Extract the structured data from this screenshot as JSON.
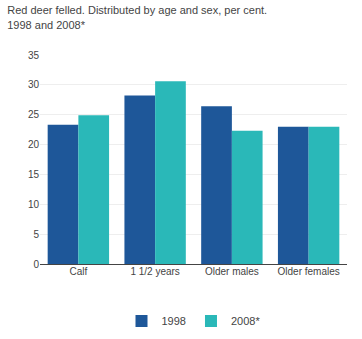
{
  "chart_data": {
    "type": "bar",
    "title": "Red deer felled. Distributed by age and sex, per cent.",
    "subtitle": "1998 and 2008*",
    "categories": [
      "Calf",
      "1 1/2 years",
      "Older males",
      "Older females"
    ],
    "series": [
      {
        "name": "1998",
        "color": "#1e5799",
        "values": [
          23.3,
          28.2,
          26.4,
          23.0
        ]
      },
      {
        "name": "2008*",
        "color": "#2ab8b8",
        "values": [
          24.9,
          30.6,
          22.3,
          23.0
        ]
      }
    ],
    "ylim": [
      0,
      35
    ],
    "yticks": [
      0,
      5,
      10,
      15,
      20,
      25,
      30,
      35
    ],
    "grid": true,
    "legend": "bottom"
  }
}
